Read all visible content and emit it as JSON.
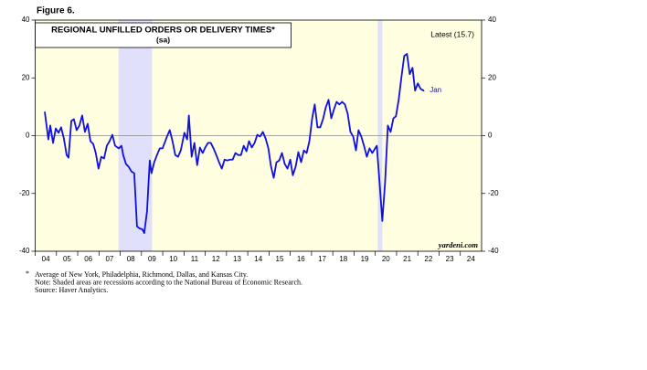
{
  "chart_data": {
    "type": "line",
    "figure_label": "Figure 6.",
    "title": "REGIONAL UNFILLED ORDERS OR DELIVERY TIMES*",
    "subtitle": "(sa)",
    "latest_label": "Latest (15.7)",
    "end_label": "Jan",
    "source_mark": "yardeni.com",
    "footnote": {
      "marker": "*",
      "text": "Average of New York, Philadelphia, Richmond, Dallas, and Kansas City."
    },
    "notes": [
      "Note: Shaded areas are recessions according to the National Bureau of Economic Research.",
      "Source: Haver Analytics."
    ],
    "recessions": [
      [
        2007.92,
        2009.5
      ],
      [
        2020.12,
        2020.33
      ]
    ],
    "recession_color": "#e0e0fa",
    "background": "#fffee0",
    "x": [
      2004.45,
      2004.62,
      2004.71,
      2004.84,
      2004.97,
      2005.1,
      2005.22,
      2005.35,
      2005.48,
      2005.57,
      2005.7,
      2005.82,
      2005.95,
      2006.08,
      2006.21,
      2006.34,
      2006.47,
      2006.6,
      2006.73,
      2006.85,
      2006.98,
      2007.11,
      2007.24,
      2007.37,
      2007.5,
      2007.63,
      2007.76,
      2007.93,
      2008.06,
      2008.14,
      2008.27,
      2008.4,
      2008.53,
      2008.66,
      2008.79,
      2008.91,
      2009.04,
      2009.13,
      2009.26,
      2009.39,
      2009.47,
      2009.6,
      2009.73,
      2009.86,
      2009.99,
      2010.12,
      2010.2,
      2010.33,
      2010.46,
      2010.59,
      2010.72,
      2010.85,
      2011.02,
      2011.15,
      2011.23,
      2011.36,
      2011.49,
      2011.62,
      2011.75,
      2011.88,
      2012.0,
      2012.13,
      2012.26,
      2012.39,
      2012.52,
      2012.65,
      2012.78,
      2012.91,
      2013.03,
      2013.16,
      2013.29,
      2013.42,
      2013.55,
      2013.68,
      2013.81,
      2013.94,
      2014.06,
      2014.19,
      2014.32,
      2014.45,
      2014.58,
      2014.71,
      2014.84,
      2014.97,
      2015.09,
      2015.22,
      2015.35,
      2015.48,
      2015.61,
      2015.74,
      2015.87,
      2016.0,
      2016.12,
      2016.25,
      2016.38,
      2016.51,
      2016.64,
      2016.77,
      2016.9,
      2017.03,
      2017.15,
      2017.28,
      2017.41,
      2017.54,
      2017.67,
      2017.8,
      2017.93,
      2018.06,
      2018.18,
      2018.31,
      2018.44,
      2018.57,
      2018.7,
      2018.83,
      2018.96,
      2019.09,
      2019.21,
      2019.34,
      2019.47,
      2019.6,
      2019.73,
      2019.86,
      2019.99,
      2020.07,
      2020.2,
      2020.33,
      2020.46,
      2020.59,
      2020.72,
      2020.85,
      2020.97,
      2021.1,
      2021.23,
      2021.36,
      2021.49,
      2021.62,
      2021.75,
      2021.87,
      2022.0,
      2022.13,
      2022.26,
      2022.3
    ],
    "series": [
      {
        "name": "Regional unfilled orders or delivery times",
        "color": "#1010e0",
        "values": [
          8.3,
          -1.3,
          3.5,
          -2.5,
          2.5,
          1.0,
          2.9,
          -1.0,
          -6.7,
          -7.6,
          5.1,
          5.7,
          1.9,
          3.5,
          7.0,
          1.3,
          4.1,
          -1.9,
          -2.9,
          -6.0,
          -11.4,
          -7.3,
          -7.9,
          -3.5,
          -1.9,
          0.3,
          -3.5,
          -4.4,
          -3.5,
          -6.7,
          -9.8,
          -10.8,
          -12.4,
          -13.0,
          -31.4,
          -32.1,
          -32.4,
          -33.7,
          -26.3,
          -8.6,
          -13.0,
          -9.2,
          -6.7,
          -4.4,
          -4.4,
          -1.9,
          -0.3,
          1.9,
          -1.9,
          -6.7,
          -7.3,
          -5.1,
          1.0,
          -1.3,
          7.0,
          -7.3,
          -2.5,
          -10.2,
          -4.1,
          -6.0,
          -4.1,
          -2.5,
          -2.5,
          -4.4,
          -6.7,
          -9.2,
          -11.4,
          -8.3,
          -8.6,
          -8.3,
          -8.3,
          -6.0,
          -6.7,
          -6.7,
          -3.5,
          -5.4,
          -1.9,
          -4.1,
          -2.5,
          0.3,
          -0.3,
          1.3,
          -1.0,
          -4.4,
          -10.5,
          -14.6,
          -9.2,
          -8.6,
          -6.0,
          -9.8,
          -11.4,
          -8.3,
          -13.7,
          -10.8,
          -5.7,
          -9.2,
          -5.1,
          -6.0,
          -1.9,
          6.0,
          10.8,
          2.9,
          2.9,
          5.7,
          9.8,
          12.4,
          6.0,
          9.2,
          11.7,
          10.8,
          11.7,
          10.8,
          7.6,
          1.3,
          -0.3,
          -5.1,
          1.9,
          -0.3,
          -3.5,
          -7.3,
          -4.4,
          -6.0,
          -4.4,
          -3.5,
          -16.2,
          -29.5,
          -16.2,
          3.5,
          1.3,
          6.0,
          6.7,
          12.4,
          20.3,
          27.6,
          28.3,
          21.3,
          23.5,
          15.6,
          18.1,
          16.2,
          15.6,
          15.7
        ]
      }
    ],
    "xlim": [
      2004,
      2025
    ],
    "xticks": [
      {
        "value": 2004,
        "label": "04"
      },
      {
        "value": 2005,
        "label": "05"
      },
      {
        "value": 2006,
        "label": "06"
      },
      {
        "value": 2007,
        "label": "07"
      },
      {
        "value": 2008,
        "label": "08"
      },
      {
        "value": 2009,
        "label": "09"
      },
      {
        "value": 2010,
        "label": "10"
      },
      {
        "value": 2011,
        "label": "11"
      },
      {
        "value": 2012,
        "label": "12"
      },
      {
        "value": 2013,
        "label": "13"
      },
      {
        "value": 2014,
        "label": "14"
      },
      {
        "value": 2015,
        "label": "15"
      },
      {
        "value": 2016,
        "label": "16"
      },
      {
        "value": 2017,
        "label": "17"
      },
      {
        "value": 2018,
        "label": "18"
      },
      {
        "value": 2019,
        "label": "19"
      },
      {
        "value": 2020,
        "label": "20"
      },
      {
        "value": 2021,
        "label": "21"
      },
      {
        "value": 2022,
        "label": "22"
      },
      {
        "value": 2023,
        "label": "23"
      },
      {
        "value": 2024,
        "label": "24"
      }
    ],
    "ylim": [
      -40,
      40
    ],
    "yticks": [
      -40,
      -20,
      0,
      20,
      40
    ]
  }
}
